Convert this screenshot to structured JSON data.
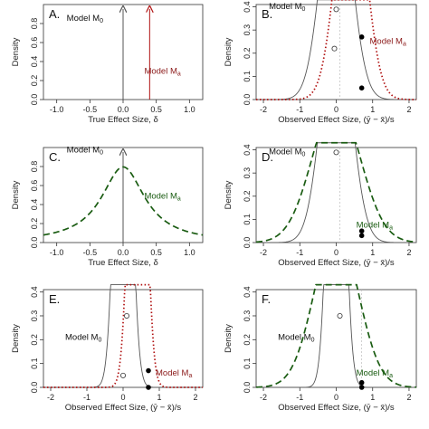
{
  "colors": {
    "m0": "#555555",
    "ma_red": "#b01010",
    "ma_green": "#1a5c12",
    "text_red": "#8b1a1a",
    "text_green": "#1a5c12",
    "ref_line": "#bbbbbb"
  },
  "chart_data": [
    {
      "panel": "A.",
      "type": "line",
      "xlabel": "True Effect Size, δ",
      "ylabel": "Density",
      "xlim": [
        -1.2,
        1.2
      ],
      "ylim": [
        0,
        1
      ],
      "xticks": [
        "-1.0",
        "-0.5",
        "0.0",
        "0.5",
        "1.0"
      ],
      "yticks": [
        "0.0",
        "0.2",
        "0.4",
        "0.6",
        "0.8"
      ],
      "arrows": [
        {
          "name": "Model M0",
          "x": 0.0
        },
        {
          "name": "Model Ma",
          "x": 0.4
        }
      ],
      "labels": {
        "m0": "Model M",
        "m0_sub": "0",
        "ma": "Model M",
        "ma_sub": "a"
      }
    },
    {
      "panel": "B.",
      "type": "line",
      "xlabel": "Observed Effect Size, (ȳ − x̄)/s",
      "ylabel": "Density",
      "xlim": [
        -2.2,
        2.2
      ],
      "ylim": [
        0,
        0.41
      ],
      "xticks": [
        "-2",
        "-1",
        "0",
        "1",
        "2"
      ],
      "yticks": [
        "0.0",
        "0.1",
        "0.2",
        "0.3",
        "0.4"
      ],
      "observed_x": 0.7,
      "ref_line_x": 0.1,
      "series": [
        {
          "name": "Model M0",
          "style": "solid",
          "mean": 0.0,
          "sd": 0.4
        },
        {
          "name": "Model Ma",
          "style": "dotted",
          "mean": 0.4,
          "sd": 0.4
        }
      ],
      "open_points": [
        {
          "x": 0.0,
          "y": 0.389
        },
        {
          "x": -0.05,
          "y": 0.22
        }
      ],
      "filled_points": [
        {
          "x": 0.7,
          "y": 0.27
        },
        {
          "x": 0.7,
          "y": 0.05
        }
      ],
      "labels": {
        "m0": "Model M",
        "m0_sub": "0",
        "ma": "Model M",
        "ma_sub": "a"
      }
    },
    {
      "panel": "C.",
      "type": "line",
      "xlabel": "True Effect Size, δ",
      "ylabel": "Density",
      "xlim": [
        -1.2,
        1.2
      ],
      "ylim": [
        0,
        1
      ],
      "xticks": [
        "-1.0",
        "-0.5",
        "0.0",
        "0.5",
        "1.0"
      ],
      "yticks": [
        "0.0",
        "0.2",
        "0.4",
        "0.6",
        "0.8"
      ],
      "arrows": [
        {
          "name": "Model M0",
          "x": 0.0
        }
      ],
      "series": [
        {
          "name": "Model Ma",
          "style": "dashed",
          "dist": "cauchy",
          "scale": 0.4
        }
      ],
      "labels": {
        "m0": "Model M",
        "m0_sub": "0",
        "ma": "Model M",
        "ma_sub": "a"
      }
    },
    {
      "panel": "D.",
      "type": "line",
      "xlabel": "Observed Effect Size, (ȳ − x̄)/s",
      "ylabel": "Density",
      "xlim": [
        -2.2,
        2.2
      ],
      "ylim": [
        0,
        0.41
      ],
      "xticks": [
        "-2",
        "-1",
        "0",
        "1",
        "2"
      ],
      "yticks": [
        "0.0",
        "0.1",
        "0.2",
        "0.3",
        "0.4"
      ],
      "observed_x": 0.7,
      "ref_line_x": 0.1,
      "series": [
        {
          "name": "Model M0",
          "style": "solid",
          "mean": 0.0,
          "sd": 0.4
        },
        {
          "name": "Model Ma",
          "style": "dashed",
          "mean": 0.0,
          "sd": 0.66
        }
      ],
      "open_points": [
        {
          "x": 0.0,
          "y": 0.389
        }
      ],
      "filled_points": [
        {
          "x": 0.7,
          "y": 0.05
        },
        {
          "x": 0.7,
          "y": 0.03
        }
      ],
      "labels": {
        "m0": "Model M",
        "m0_sub": "0",
        "ma": "Model M",
        "ma_sub": "a"
      }
    },
    {
      "panel": "E.",
      "type": "line",
      "xlabel": "Observed Effect Size, (ȳ − x̄)/s",
      "ylabel": "Density",
      "xlim": [
        -2.2,
        2.2
      ],
      "ylim": [
        0,
        0.41
      ],
      "xticks": [
        "-2",
        "-1",
        "0",
        "1",
        "2"
      ],
      "yticks": [
        "0.0",
        "0.1",
        "0.2",
        "0.3",
        "0.4"
      ],
      "observed_x": 0.7,
      "series": [
        {
          "name": "Model M0",
          "style": "solid",
          "mean": 0.0,
          "sd": 0.2
        },
        {
          "name": "Model Ma",
          "style": "dotted",
          "mean": 0.4,
          "sd": 0.2
        }
      ],
      "open_points": [
        {
          "x": 0.1,
          "y": 0.3
        },
        {
          "x": 0.0,
          "y": 0.05
        }
      ],
      "filled_points": [
        {
          "x": 0.7,
          "y": 0.07
        },
        {
          "x": 0.7,
          "y": 0.0
        }
      ],
      "labels": {
        "m0": "Model M",
        "m0_sub": "0",
        "ma": "Model M",
        "ma_sub": "a"
      }
    },
    {
      "panel": "F.",
      "type": "line",
      "xlabel": "Observed Effect Size, (ȳ − x̄)/s",
      "ylabel": "Density",
      "xlim": [
        -2.2,
        2.2
      ],
      "ylim": [
        0,
        0.41
      ],
      "xticks": [
        "-2",
        "-1",
        "0",
        "1",
        "2"
      ],
      "yticks": [
        "0.0",
        "0.1",
        "0.2",
        "0.3",
        "0.4"
      ],
      "observed_x": 0.7,
      "ref_line_x": 0.7,
      "series": [
        {
          "name": "Model M0",
          "style": "solid",
          "mean": 0.0,
          "sd": 0.2
        },
        {
          "name": "Model Ma",
          "style": "dashed",
          "mean": 0.0,
          "sd": 0.6
        }
      ],
      "open_points": [
        {
          "x": 0.1,
          "y": 0.3
        }
      ],
      "filled_points": [
        {
          "x": 0.7,
          "y": 0.02
        },
        {
          "x": 0.7,
          "y": 0.0
        }
      ],
      "labels": {
        "m0": "Model M",
        "m0_sub": "0",
        "ma": "Model M",
        "ma_sub": "a"
      }
    }
  ]
}
